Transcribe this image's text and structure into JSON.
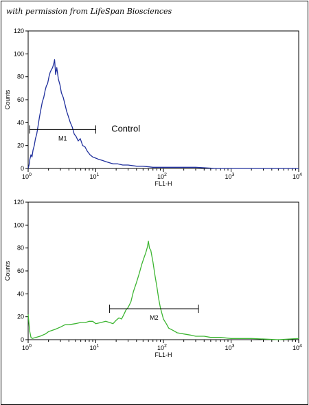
{
  "credit": "with permission from LifeSpan Biosciences",
  "chart_data": [
    {
      "type": "line",
      "xlabel": "FL1-H",
      "ylabel": "Counts",
      "xscale": "log",
      "xlim": [
        1,
        10000
      ],
      "ylim": [
        0,
        120
      ],
      "xticks": [
        {
          "value": 1,
          "base": "10",
          "exp": "0"
        },
        {
          "value": 10,
          "base": "10",
          "exp": "1"
        },
        {
          "value": 100,
          "base": "10",
          "exp": "2"
        },
        {
          "value": 1000,
          "base": "10",
          "exp": "3"
        },
        {
          "value": 10000,
          "base": "10",
          "exp": "4"
        }
      ],
      "yticks": [
        "0",
        "20",
        "40",
        "60",
        "80",
        "100",
        "120"
      ],
      "series": [
        {
          "color": "#1f2f9c",
          "points": [
            [
              1.0,
              0
            ],
            [
              1.03,
              3
            ],
            [
              1.06,
              8
            ],
            [
              1.1,
              12
            ],
            [
              1.14,
              10
            ],
            [
              1.18,
              16
            ],
            [
              1.23,
              20
            ],
            [
              1.28,
              26
            ],
            [
              1.34,
              30
            ],
            [
              1.4,
              37
            ],
            [
              1.47,
              45
            ],
            [
              1.55,
              52
            ],
            [
              1.62,
              58
            ],
            [
              1.7,
              62
            ],
            [
              1.78,
              68
            ],
            [
              1.86,
              72
            ],
            [
              1.94,
              74
            ],
            [
              2.03,
              80
            ],
            [
              2.12,
              84
            ],
            [
              2.2,
              86
            ],
            [
              2.3,
              88
            ],
            [
              2.4,
              92
            ],
            [
              2.46,
              95
            ],
            [
              2.55,
              82
            ],
            [
              2.65,
              88
            ],
            [
              2.8,
              78
            ],
            [
              2.95,
              73
            ],
            [
              3.1,
              66
            ],
            [
              3.3,
              62
            ],
            [
              3.5,
              56
            ],
            [
              3.7,
              50
            ],
            [
              3.9,
              46
            ],
            [
              4.2,
              40
            ],
            [
              4.5,
              36
            ],
            [
              4.8,
              30
            ],
            [
              5.1,
              28
            ],
            [
              5.5,
              24
            ],
            [
              5.9,
              26
            ],
            [
              6.4,
              20
            ],
            [
              6.9,
              19
            ],
            [
              7.5,
              15
            ],
            [
              8.2,
              12
            ],
            [
              9.0,
              10
            ],
            [
              10,
              9
            ],
            [
              11,
              8
            ],
            [
              12.5,
              7
            ],
            [
              14,
              6
            ],
            [
              16,
              5
            ],
            [
              18,
              4
            ],
            [
              21,
              4
            ],
            [
              25,
              3
            ],
            [
              30,
              3
            ],
            [
              40,
              2
            ],
            [
              50,
              2
            ],
            [
              70,
              1
            ],
            [
              100,
              1
            ],
            [
              150,
              1
            ],
            [
              300,
              1
            ],
            [
              600,
              0
            ],
            [
              1000,
              0
            ],
            [
              3000,
              0
            ],
            [
              10000,
              0
            ]
          ]
        }
      ],
      "markers": [
        {
          "label": "M1",
          "x_start": 1.05,
          "x_end": 10,
          "y": 34
        }
      ],
      "annotations": [
        {
          "text": "Control",
          "x": 17,
          "y": 32
        }
      ],
      "grid": false
    },
    {
      "type": "line",
      "xlabel": "FL1-H",
      "ylabel": "Counts",
      "xscale": "log",
      "xlim": [
        1,
        10000
      ],
      "ylim": [
        0,
        120
      ],
      "xticks": [
        {
          "value": 1,
          "base": "10",
          "exp": "0"
        },
        {
          "value": 10,
          "base": "10",
          "exp": "1"
        },
        {
          "value": 100,
          "base": "10",
          "exp": "2"
        },
        {
          "value": 1000,
          "base": "10",
          "exp": "3"
        },
        {
          "value": 10000,
          "base": "10",
          "exp": "4"
        }
      ],
      "yticks": [
        "0",
        "20",
        "40",
        "60",
        "80",
        "100",
        "120"
      ],
      "series": [
        {
          "color": "#3cb531",
          "points": [
            [
              1.0,
              22
            ],
            [
              1.05,
              8
            ],
            [
              1.1,
              2
            ],
            [
              1.15,
              1
            ],
            [
              1.3,
              2
            ],
            [
              1.5,
              3
            ],
            [
              1.8,
              5
            ],
            [
              2.0,
              7
            ],
            [
              2.5,
              9
            ],
            [
              3.0,
              11
            ],
            [
              3.5,
              13
            ],
            [
              4.0,
              13
            ],
            [
              5.0,
              14
            ],
            [
              6.0,
              15
            ],
            [
              7.0,
              15
            ],
            [
              8.0,
              16
            ],
            [
              9.0,
              16
            ],
            [
              10,
              14
            ],
            [
              12,
              15
            ],
            [
              14,
              16
            ],
            [
              16,
              15
            ],
            [
              18,
              14
            ],
            [
              20,
              17
            ],
            [
              22,
              19
            ],
            [
              24,
              18
            ],
            [
              26,
              22
            ],
            [
              28,
              26
            ],
            [
              30,
              28
            ],
            [
              33,
              33
            ],
            [
              36,
              42
            ],
            [
              40,
              50
            ],
            [
              44,
              58
            ],
            [
              48,
              66
            ],
            [
              52,
              72
            ],
            [
              55,
              76
            ],
            [
              58,
              81
            ],
            [
              60,
              86
            ],
            [
              62,
              80
            ],
            [
              65,
              78
            ],
            [
              70,
              68
            ],
            [
              75,
              56
            ],
            [
              80,
              46
            ],
            [
              85,
              36
            ],
            [
              90,
              28
            ],
            [
              100,
              18
            ],
            [
              110,
              14
            ],
            [
              120,
              10
            ],
            [
              140,
              8
            ],
            [
              160,
              6
            ],
            [
              200,
              5
            ],
            [
              250,
              4
            ],
            [
              300,
              3
            ],
            [
              400,
              3
            ],
            [
              500,
              2
            ],
            [
              700,
              2
            ],
            [
              1000,
              1
            ],
            [
              2000,
              1
            ],
            [
              5000,
              0
            ],
            [
              10000,
              1
            ]
          ]
        }
      ],
      "markers": [
        {
          "label": "M2",
          "x_start": 16,
          "x_end": 330,
          "y": 27
        }
      ],
      "annotations": [],
      "grid": false
    }
  ]
}
